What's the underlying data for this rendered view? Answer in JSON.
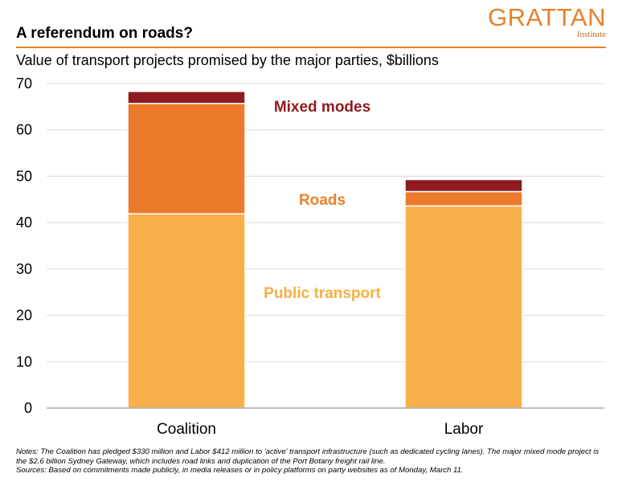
{
  "header": {
    "title": "A referendum on roads?",
    "subtitle": "Value of transport projects promised by the major parties, $billions",
    "logo_main": "GRATTAN",
    "logo_sub": "Institute"
  },
  "colors": {
    "accent": "#e8812a",
    "public_transport": "#f9b04b",
    "roads": "#ec7a2b",
    "mixed_modes": "#8e1b1f",
    "label_public_transport": "#f5b041",
    "label_roads": "#e8812a",
    "label_mixed_modes": "#8e1b1f"
  },
  "chart_data": {
    "type": "bar",
    "stacked": true,
    "categories": [
      "Coalition",
      "Labor"
    ],
    "series": [
      {
        "name": "Public transport",
        "values": [
          41.9,
          43.6
        ]
      },
      {
        "name": "Roads",
        "values": [
          23.8,
          3.1
        ]
      },
      {
        "name": "Mixed modes",
        "values": [
          2.6,
          2.6
        ]
      }
    ],
    "ylim": [
      0,
      70
    ],
    "yticks": [
      0,
      10,
      20,
      30,
      40,
      50,
      60,
      70
    ],
    "xlabel": "",
    "ylabel": "",
    "grid": true,
    "legend": "direct labels inside plot"
  },
  "notes": {
    "notes_text": "Notes: The Coalition has pledged $330 million and Labor $412 million to 'active' transport infrastructure (such as dedicated cycling lanes). The major mixed mode project is the $2.6 billion Sydney Gateway, which includes road links and duplication of the Port Botany freight rail line.",
    "sources_text": "Sources: Based on commitments made publicly, in media releases or in policy platforms on party websites as of Monday, March 11."
  }
}
